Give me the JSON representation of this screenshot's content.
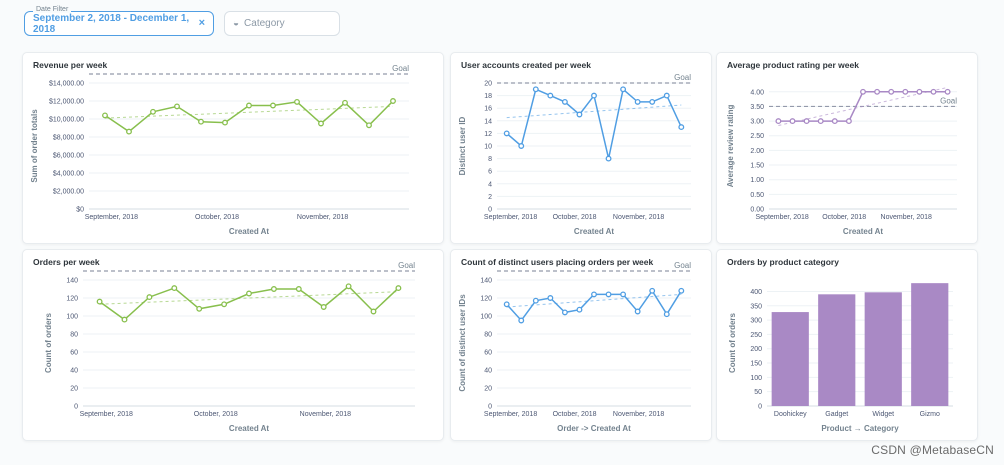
{
  "date_filter": {
    "legend": "Date Filter",
    "value": "September 2, 2018 - December 1, 2018",
    "clear_icon": "×"
  },
  "category_filter": {
    "placeholder": "Category",
    "icon": "tag-icon"
  },
  "watermark": "CSDN @MetabaseCN",
  "colors": {
    "green": "#88bf4d",
    "blue": "#509ee3",
    "purple": "#a989c5",
    "goal": "#949aab",
    "grid": "#edf2f5"
  },
  "cards": [
    {
      "title": "Revenue per week",
      "chart_data": {
        "type": "line",
        "color": "#88bf4d",
        "xlabel": "Created At",
        "ylabel": "Sum of order totals",
        "y_ticks": [
          "$0",
          "$2,000.00",
          "$4,000.00",
          "$6,000.00",
          "$8,000.00",
          "$10,000.00",
          "$12,000.00",
          "$14,000.00"
        ],
        "ylim": [
          0,
          14000
        ],
        "x_ticks": [
          "September, 2018",
          "October, 2018",
          "November, 2018"
        ],
        "values": [
          10400,
          8600,
          10800,
          11400,
          9700,
          9600,
          11500,
          11500,
          11900,
          9500,
          11800,
          9300,
          12000
        ],
        "goal": 15000,
        "goal_label": "Goal",
        "trend": [
          10100,
          11400
        ]
      }
    },
    {
      "title": "User accounts created per week",
      "chart_data": {
        "type": "line",
        "color": "#509ee3",
        "xlabel": "Created At",
        "ylabel": "Distinct user ID",
        "y_ticks": [
          "0",
          "2",
          "4",
          "6",
          "8",
          "10",
          "12",
          "14",
          "16",
          "18",
          "20"
        ],
        "ylim": [
          0,
          20
        ],
        "x_ticks": [
          "September, 2018",
          "October, 2018",
          "November, 2018"
        ],
        "values": [
          12,
          10,
          19,
          18,
          17,
          15,
          18,
          8,
          19,
          17,
          17,
          18,
          13
        ],
        "goal": 20,
        "goal_label": "Goal",
        "trend": [
          14.5,
          16.5
        ]
      }
    },
    {
      "title": "Average product rating per week",
      "chart_data": {
        "type": "line",
        "color": "#a989c5",
        "xlabel": "Created At",
        "ylabel": "Average review rating",
        "y_ticks": [
          "0.00",
          "0.50",
          "1.00",
          "1.50",
          "2.00",
          "2.50",
          "3.00",
          "3.50",
          "4.00"
        ],
        "ylim": [
          0,
          4.3
        ],
        "x_ticks": [
          "September, 2018",
          "October, 2018",
          "November, 2018"
        ],
        "values": [
          3,
          3,
          3,
          3,
          3,
          3,
          4,
          4,
          4,
          4,
          4,
          4,
          4
        ],
        "goal": 3.5,
        "goal_label": "Goal",
        "trend": [
          2.85,
          4.15
        ]
      }
    },
    {
      "title": "Orders per week",
      "chart_data": {
        "type": "line",
        "color": "#88bf4d",
        "xlabel": "Created At",
        "ylabel": "Count of orders",
        "y_ticks": [
          "0",
          "20",
          "40",
          "60",
          "80",
          "100",
          "120",
          "140"
        ],
        "ylim": [
          0,
          140
        ],
        "x_ticks": [
          "September, 2018",
          "October, 2018",
          "November, 2018"
        ],
        "values": [
          116,
          96,
          121,
          131,
          108,
          113,
          125,
          130,
          130,
          110,
          133,
          105,
          131
        ],
        "goal": 150,
        "goal_label": "Goal",
        "trend": [
          113,
          127
        ]
      }
    },
    {
      "title": "Count of distinct users placing orders per week",
      "chart_data": {
        "type": "line",
        "color": "#509ee3",
        "xlabel": "Order -> Created At",
        "ylabel": "Count of distinct user IDs",
        "y_ticks": [
          "0",
          "20",
          "40",
          "60",
          "80",
          "100",
          "120",
          "140"
        ],
        "ylim": [
          0,
          140
        ],
        "x_ticks": [
          "September, 2018",
          "October, 2018",
          "November, 2018"
        ],
        "values": [
          113,
          95,
          117,
          120,
          104,
          107,
          124,
          124,
          124,
          105,
          128,
          102,
          128
        ],
        "goal": 150,
        "goal_label": "Goal",
        "trend": [
          110,
          124
        ]
      }
    },
    {
      "title": "Orders by product category",
      "chart_data": {
        "type": "bar",
        "color": "#a989c5",
        "xlabel": "Product → Category",
        "ylabel": "Count of orders",
        "y_ticks": [
          "0",
          "50",
          "100",
          "150",
          "200",
          "250",
          "300",
          "350",
          "400"
        ],
        "ylim": [
          0,
          440
        ],
        "categories": [
          "Doohickey",
          "Gadget",
          "Widget",
          "Gizmo"
        ],
        "values": [
          328,
          390,
          397,
          429
        ]
      }
    }
  ]
}
